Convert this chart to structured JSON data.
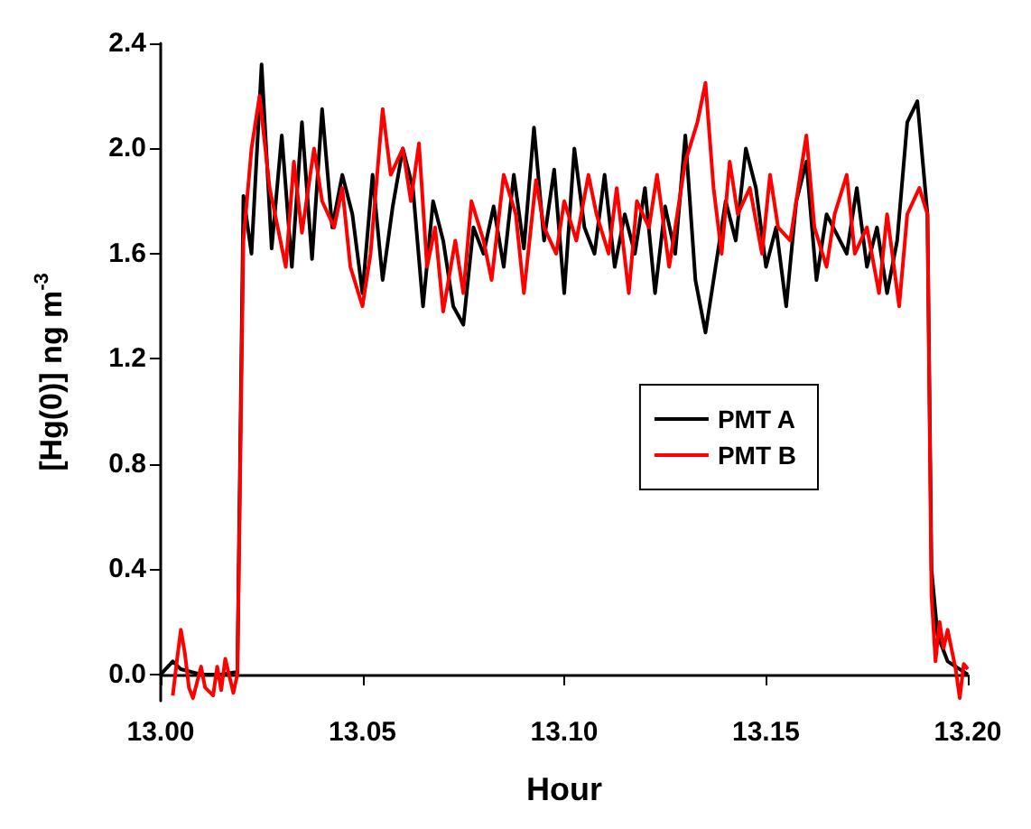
{
  "chart_data": {
    "type": "line",
    "xlabel": "Hour",
    "ylabel": "[Hg(0)] ng m$^{-3}$",
    "xlim": [
      13.0,
      13.2
    ],
    "xticks": [
      {
        "value": 13.0,
        "label": "13.00"
      },
      {
        "value": 13.05,
        "label": "13.05"
      },
      {
        "value": 13.1,
        "label": "13.10"
      },
      {
        "value": 13.15,
        "label": "13.15"
      },
      {
        "value": 13.2,
        "label": "13.20"
      }
    ],
    "ylim": [
      -0.1,
      2.4
    ],
    "yticks": [
      {
        "value": 0,
        "label": "0.0"
      },
      {
        "value": 0.4,
        "label": "0.4"
      },
      {
        "value": 0.8,
        "label": "0.8"
      },
      {
        "value": 1.2,
        "label": "1.2"
      },
      {
        "value": 1.6,
        "label": "1.6"
      },
      {
        "value": 2.0,
        "label": "2.0"
      },
      {
        "value": 2.4,
        "label": "2.4"
      }
    ],
    "grid": false,
    "legend": "right",
    "marker": "none",
    "line_style": "solid",
    "series": [
      {
        "name": "PMT A",
        "color": "#000000",
        "x": [
          13.0,
          13.003,
          13.005,
          13.01,
          13.015,
          13.019,
          13.0205,
          13.0225,
          13.025,
          13.0275,
          13.03,
          13.0325,
          13.035,
          13.0375,
          13.04,
          13.0425,
          13.045,
          13.0475,
          13.05,
          13.0525,
          13.055,
          13.0575,
          13.06,
          13.0625,
          13.065,
          13.0675,
          13.07,
          13.0725,
          13.075,
          13.0775,
          13.08,
          13.0825,
          13.085,
          13.0875,
          13.09,
          13.0925,
          13.095,
          13.0975,
          13.1,
          13.1025,
          13.105,
          13.1075,
          13.11,
          13.1125,
          13.115,
          13.1175,
          13.12,
          13.1225,
          13.125,
          13.1275,
          13.13,
          13.1325,
          13.135,
          13.1375,
          13.14,
          13.1425,
          13.145,
          13.1475,
          13.15,
          13.1525,
          13.155,
          13.1575,
          13.16,
          13.1625,
          13.165,
          13.17,
          13.1725,
          13.175,
          13.1775,
          13.18,
          13.1825,
          13.185,
          13.1875,
          13.19,
          13.191,
          13.1925,
          13.195,
          13.2
        ],
        "values": [
          0.0,
          0.05,
          0.02,
          0.0,
          0.0,
          0.01,
          1.82,
          1.6,
          2.32,
          1.62,
          2.05,
          1.55,
          2.1,
          1.58,
          2.15,
          1.7,
          1.9,
          1.75,
          1.45,
          1.9,
          1.5,
          1.78,
          2.0,
          1.85,
          1.4,
          1.8,
          1.65,
          1.4,
          1.33,
          1.7,
          1.6,
          1.78,
          1.55,
          1.9,
          1.62,
          2.08,
          1.65,
          1.92,
          1.45,
          2.0,
          1.7,
          1.6,
          1.9,
          1.55,
          1.75,
          1.6,
          1.85,
          1.45,
          1.78,
          1.6,
          2.05,
          1.5,
          1.3,
          1.55,
          1.8,
          1.65,
          2.0,
          1.85,
          1.55,
          1.7,
          1.4,
          1.8,
          1.95,
          1.5,
          1.75,
          1.6,
          1.85,
          1.55,
          1.7,
          1.45,
          1.65,
          2.1,
          2.18,
          1.75,
          0.4,
          0.15,
          0.05,
          0.0
        ]
      },
      {
        "name": "PMT B",
        "color": "#ff0000",
        "x": [
          13.003,
          13.004,
          13.005,
          13.006,
          13.007,
          13.008,
          13.01,
          13.011,
          13.013,
          13.014,
          13.015,
          13.016,
          13.018,
          13.019,
          13.0205,
          13.0225,
          13.0245,
          13.027,
          13.029,
          13.031,
          13.033,
          13.035,
          13.038,
          13.04,
          13.043,
          13.045,
          13.047,
          13.05,
          13.052,
          13.055,
          13.057,
          13.06,
          13.062,
          13.064,
          13.066,
          13.068,
          13.07,
          13.073,
          13.075,
          13.077,
          13.08,
          13.082,
          13.085,
          13.088,
          13.09,
          13.093,
          13.095,
          13.098,
          13.1,
          13.103,
          13.106,
          13.108,
          13.111,
          13.113,
          13.116,
          13.118,
          13.121,
          13.123,
          13.126,
          13.128,
          13.13,
          13.133,
          13.135,
          13.137,
          13.139,
          13.141,
          13.143,
          13.146,
          13.149,
          13.151,
          13.153,
          13.156,
          13.158,
          13.16,
          13.162,
          13.165,
          13.167,
          13.17,
          13.172,
          13.175,
          13.178,
          13.18,
          13.183,
          13.185,
          13.188,
          13.19,
          13.191,
          13.192,
          13.193,
          13.194,
          13.195,
          13.197,
          13.198,
          13.199,
          13.2
        ],
        "values": [
          -0.08,
          0.05,
          0.17,
          0.08,
          -0.05,
          -0.09,
          0.03,
          -0.05,
          -0.08,
          0.03,
          -0.06,
          0.06,
          -0.07,
          0.0,
          1.65,
          2.0,
          2.2,
          1.85,
          1.7,
          1.55,
          1.95,
          1.68,
          2.0,
          1.8,
          1.7,
          1.85,
          1.55,
          1.4,
          1.6,
          2.15,
          1.9,
          2.0,
          1.8,
          2.02,
          1.55,
          1.7,
          1.38,
          1.65,
          1.45,
          1.8,
          1.65,
          1.5,
          1.9,
          1.75,
          1.45,
          1.88,
          1.7,
          1.6,
          1.8,
          1.65,
          1.9,
          1.75,
          1.6,
          1.85,
          1.45,
          1.8,
          1.7,
          1.9,
          1.55,
          1.75,
          1.95,
          2.1,
          2.25,
          1.85,
          1.6,
          1.95,
          1.75,
          1.85,
          1.6,
          1.9,
          1.7,
          1.65,
          1.85,
          2.05,
          1.7,
          1.55,
          1.75,
          1.9,
          1.6,
          1.7,
          1.45,
          1.75,
          1.4,
          1.75,
          1.85,
          1.75,
          0.3,
          0.05,
          0.2,
          0.1,
          0.17,
          0.02,
          -0.09,
          0.04,
          0.02
        ]
      }
    ]
  }
}
